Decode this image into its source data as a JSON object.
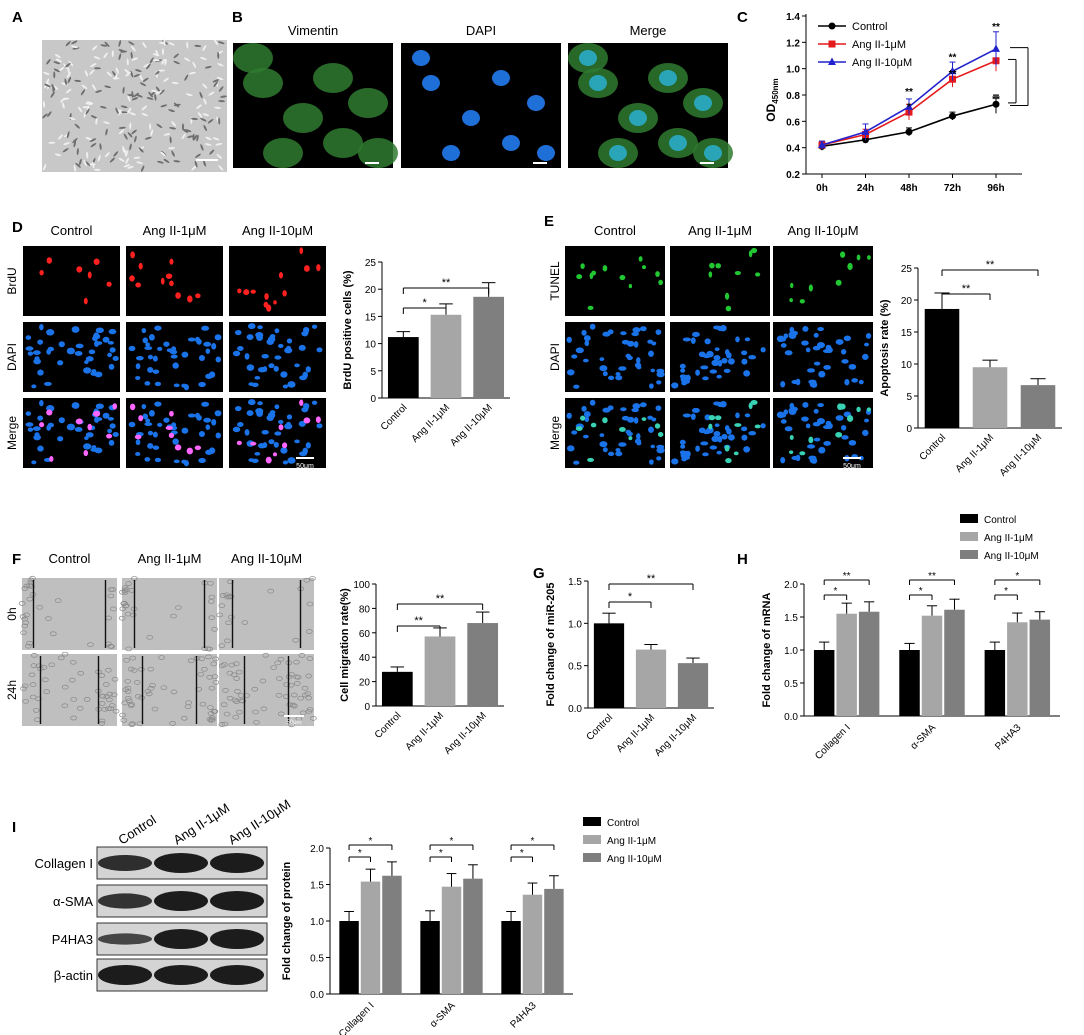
{
  "panels": {
    "A": {
      "letter": "A"
    },
    "B": {
      "letter": "B",
      "labels": [
        "Vimentin",
        "DAPI",
        "Merge"
      ],
      "scale": "25μm"
    },
    "D": {
      "letter": "D",
      "columns": [
        "Control",
        "Ang II-1μM",
        "Ang II-10μM"
      ],
      "rows": [
        "BrdU",
        "DAPI",
        "Merge"
      ],
      "scale": "50μm"
    },
    "E": {
      "letter": "E",
      "columns": [
        "Control",
        "Ang II-1μM",
        "Ang II-10μM"
      ],
      "rows": [
        "TUNEL",
        "DAPI",
        "Merge"
      ],
      "scale": "50μm"
    },
    "F": {
      "letter": "F",
      "columns": [
        "Control",
        "Ang II-1μM",
        "Ang II-10μM"
      ],
      "rows": [
        "0h",
        "24h"
      ],
      "scale": "50μm"
    },
    "I": {
      "letter": "I",
      "columns": [
        "Control",
        "Ang II-1μM",
        "Ang II-10μM"
      ],
      "rows": [
        "Collagen I",
        "α-SMA",
        "P4HA3",
        "β-actin"
      ]
    }
  },
  "colors": {
    "control": "#000000",
    "low": "#e41a1c",
    "high": "#2222cc",
    "bar_control": "#000000",
    "bar_low": "#a6a6a6",
    "bar_high": "#7f7f7f",
    "fluor_bg": "#000000",
    "brightfield": "#bfbfbf"
  },
  "chart_data": [
    {
      "id": "C",
      "letter": "C",
      "type": "line",
      "x": [
        "0h",
        "24h",
        "48h",
        "72h",
        "96h"
      ],
      "ylabel_main": "OD",
      "ylabel_sub": "450nm",
      "ylim": [
        0.2,
        1.4
      ],
      "yticks": [
        "0.2",
        "0.4",
        "0.6",
        "0.8",
        "1.0",
        "1.2",
        "1.4"
      ],
      "series": [
        {
          "name": "Control",
          "values": [
            0.41,
            0.46,
            0.52,
            0.64,
            0.73
          ],
          "errors": [
            0.03,
            0.02,
            0.03,
            0.03,
            0.07
          ]
        },
        {
          "name": "Ang II-1μM",
          "values": [
            0.42,
            0.5,
            0.67,
            0.92,
            1.06
          ],
          "errors": [
            0.03,
            0.04,
            0.06,
            0.06,
            0.08
          ]
        },
        {
          "name": "Ang II-10μM",
          "values": [
            0.42,
            0.52,
            0.71,
            0.98,
            1.15
          ],
          "errors": [
            0.03,
            0.06,
            0.06,
            0.07,
            0.13
          ]
        }
      ],
      "annotations": [
        {
          "x": "48h",
          "text": "**"
        },
        {
          "x": "48h",
          "text": "*"
        },
        {
          "x": "72h",
          "text": "**"
        },
        {
          "x": "72h",
          "text": "**"
        },
        {
          "x": "96h",
          "text": "**"
        },
        {
          "x": "96h",
          "text": "**"
        }
      ]
    },
    {
      "id": "D",
      "letter": "D",
      "type": "bar",
      "categories": [
        "Control",
        "Ang II-1μM",
        "Ang II-10μM"
      ],
      "values": [
        11.2,
        15.3,
        18.6
      ],
      "errors": [
        1.0,
        2.0,
        2.6
      ],
      "ylabel": "BrdU positive cells (%)",
      "ylim": [
        0,
        25
      ],
      "yticks": [
        "0",
        "5",
        "10",
        "15",
        "20",
        "25"
      ],
      "brackets": [
        {
          "from": 0,
          "to": 1,
          "text": "*"
        },
        {
          "from": 0,
          "to": 2,
          "text": "**"
        }
      ]
    },
    {
      "id": "E",
      "letter": "E",
      "type": "bar",
      "categories": [
        "Control",
        "Ang II-1μM",
        "Ang II-10μM"
      ],
      "values": [
        18.6,
        9.5,
        6.7
      ],
      "errors": [
        2.5,
        1.1,
        1.0
      ],
      "ylabel": "Apoptosis rate (%)",
      "ylim": [
        0,
        25
      ],
      "yticks": [
        "0",
        "5",
        "10",
        "15",
        "20",
        "25"
      ],
      "brackets": [
        {
          "from": 0,
          "to": 1,
          "text": "**"
        },
        {
          "from": 0,
          "to": 2,
          "text": "**"
        }
      ]
    },
    {
      "id": "F",
      "letter": "F",
      "type": "bar",
      "categories": [
        "Control",
        "Ang II-1μM",
        "Ang II-10μM"
      ],
      "values": [
        28,
        57,
        68
      ],
      "errors": [
        4,
        7,
        9
      ],
      "ylabel": "Cell migration rate(%)",
      "ylim": [
        0,
        100
      ],
      "yticks": [
        "0",
        "20",
        "40",
        "60",
        "80",
        "100"
      ],
      "brackets": [
        {
          "from": 0,
          "to": 1,
          "text": "**"
        },
        {
          "from": 0,
          "to": 2,
          "text": "**"
        }
      ]
    },
    {
      "id": "G",
      "letter": "G",
      "type": "bar",
      "categories": [
        "Control",
        "Ang II-1μM",
        "Ang II-10μM"
      ],
      "values": [
        1.0,
        0.69,
        0.53
      ],
      "errors": [
        0.12,
        0.06,
        0.06
      ],
      "ylabel": "Fold change of miR-205",
      "ylim": [
        0,
        1.5
      ],
      "yticks": [
        "0.0",
        "0.5",
        "1.0",
        "1.5"
      ],
      "brackets": [
        {
          "from": 0,
          "to": 1,
          "text": "*"
        },
        {
          "from": 0,
          "to": 2,
          "text": "**"
        }
      ]
    },
    {
      "id": "H",
      "letter": "H",
      "type": "bar",
      "categories": [
        "Collagen I",
        "α-SMA",
        "P4HA3"
      ],
      "series": [
        {
          "name": "Control",
          "values": [
            1.0,
            1.0,
            1.0
          ],
          "errors": [
            0.12,
            0.1,
            0.12
          ]
        },
        {
          "name": "Ang II-1μM",
          "values": [
            1.55,
            1.52,
            1.42
          ],
          "errors": [
            0.16,
            0.15,
            0.14
          ]
        },
        {
          "name": "Ang II-10μM",
          "values": [
            1.58,
            1.61,
            1.46
          ],
          "errors": [
            0.15,
            0.16,
            0.12
          ]
        }
      ],
      "ylabel": "Fold change of mRNA",
      "ylim": [
        0,
        2.0
      ],
      "yticks": [
        "0.0",
        "0.5",
        "1.0",
        "1.5",
        "2.0"
      ],
      "brackets": [
        {
          "group": 0,
          "from": 0,
          "to": 1,
          "text": "*"
        },
        {
          "group": 0,
          "from": 0,
          "to": 2,
          "text": "**"
        },
        {
          "group": 1,
          "from": 0,
          "to": 1,
          "text": "*"
        },
        {
          "group": 1,
          "from": 0,
          "to": 2,
          "text": "**"
        },
        {
          "group": 2,
          "from": 0,
          "to": 1,
          "text": "*"
        },
        {
          "group": 2,
          "from": 0,
          "to": 2,
          "text": "*"
        }
      ]
    },
    {
      "id": "I",
      "letter": "I",
      "type": "bar",
      "categories": [
        "Collagen I",
        "α-SMA",
        "P4HA3"
      ],
      "series": [
        {
          "name": "Control",
          "values": [
            1.0,
            1.0,
            1.0
          ],
          "errors": [
            0.13,
            0.14,
            0.13
          ]
        },
        {
          "name": "Ang II-1μM",
          "values": [
            1.54,
            1.47,
            1.36
          ],
          "errors": [
            0.17,
            0.18,
            0.16
          ]
        },
        {
          "name": "Ang II-10μM",
          "values": [
            1.62,
            1.58,
            1.44
          ],
          "errors": [
            0.19,
            0.19,
            0.18
          ]
        }
      ],
      "ylabel": "Fold change of protein",
      "ylim": [
        0,
        2.0
      ],
      "yticks": [
        "0.0",
        "0.5",
        "1.0",
        "1.5",
        "2.0"
      ],
      "brackets": [
        {
          "group": 0,
          "from": 0,
          "to": 1,
          "text": "*"
        },
        {
          "group": 0,
          "from": 0,
          "to": 2,
          "text": "*"
        },
        {
          "group": 1,
          "from": 0,
          "to": 1,
          "text": "*"
        },
        {
          "group": 1,
          "from": 0,
          "to": 2,
          "text": "*"
        },
        {
          "group": 2,
          "from": 0,
          "to": 1,
          "text": "*"
        },
        {
          "group": 2,
          "from": 0,
          "to": 2,
          "text": "*"
        }
      ]
    }
  ]
}
